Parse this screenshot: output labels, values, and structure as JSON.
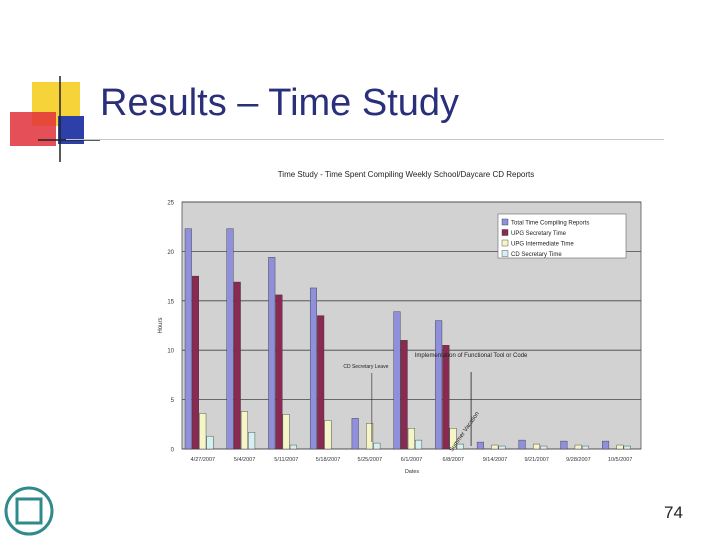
{
  "slide": {
    "title": "Results – Time Study",
    "page_number": "74"
  },
  "colors": {
    "title": "#2a2f7a",
    "series": [
      "#8f8fdb",
      "#8a2a52",
      "#f5f5c8",
      "#d4f0f0"
    ],
    "logo_yellow": "#f7d33a",
    "logo_red": "#e0303a",
    "logo_blue": "#2d3fa8"
  },
  "chart_data": {
    "type": "bar",
    "title": "Time Study - Time Spent Compiling Weekly School/Daycare CD Reports",
    "xlabel": "Dates",
    "ylabel": "Hours",
    "ylim": [
      0,
      25
    ],
    "yticks": [
      "0",
      "5",
      "10",
      "15",
      "20",
      "25"
    ],
    "grid": true,
    "legend_position": "top-right",
    "categories": [
      "4/27/2007",
      "5/4/2007",
      "5/11/2007",
      "5/18/2007",
      "5/25/2007",
      "6/1/2007",
      "6/8/2007",
      "9/14/2007",
      "9/21/2007",
      "9/28/2007",
      "10/5/2007"
    ],
    "series": [
      {
        "name": "Total Time Compiling Reports",
        "values": [
          22.3,
          22.3,
          19.4,
          16.3,
          3.1,
          13.9,
          13.0,
          0.7,
          0.9,
          0.8,
          0.8
        ]
      },
      {
        "name": "UPG Secretary Time",
        "values": [
          17.5,
          16.9,
          15.6,
          13.5,
          0,
          11.0,
          10.5,
          0,
          0,
          0,
          0
        ]
      },
      {
        "name": "UPG Intermediate Time",
        "values": [
          3.6,
          3.8,
          3.5,
          2.9,
          2.6,
          2.1,
          2.1,
          0.4,
          0.5,
          0.4,
          0.4
        ]
      },
      {
        "name": "CD Secretary Time",
        "values": [
          1.3,
          1.7,
          0.4,
          0,
          0.6,
          0.9,
          0.5,
          0.3,
          0.3,
          0.3,
          0.3
        ]
      }
    ],
    "annotations": [
      {
        "text": "CD Secretary Leave",
        "category_index": 4
      },
      {
        "text": "Implementation of Functional Tool or Code",
        "category_index": 7
      },
      {
        "text": "Summer Vacation",
        "category_index": 7
      }
    ]
  }
}
